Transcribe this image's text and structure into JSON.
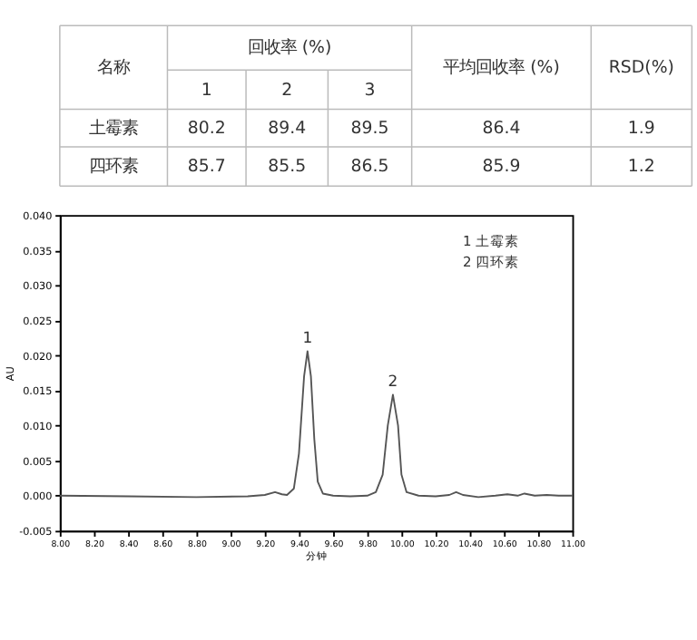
{
  "chart_data": [
    {
      "type": "other",
      "annotations": [
        "名称",
        "回收率 (%)",
        "1",
        "2",
        "3",
        "平均回收率 (%)",
        "RSD(%)",
        "土霉素",
        "80.2",
        "89.4",
        "89.5",
        "86.4",
        "1.9",
        "四环素",
        "85.7",
        "85.5",
        "86.5",
        "85.9",
        "1.2"
      ]
    },
    {
      "type": "line",
      "xlabel": "分钟",
      "ylabel": "AU",
      "grid": false,
      "marker": "none",
      "line_style": "solid",
      "series": [
        {
          "color": "#555555",
          "x": [
            8.0,
            8.4,
            8.8,
            9.1,
            9.2,
            9.26,
            9.3,
            9.33,
            9.37,
            9.4,
            9.43,
            9.45,
            9.47,
            9.49,
            9.51,
            9.54,
            9.6,
            9.7,
            9.8,
            9.85,
            9.89,
            9.92,
            9.95,
            9.98,
            10.0,
            10.03,
            10.1,
            10.2,
            10.28,
            10.32,
            10.36,
            10.45,
            10.55,
            10.62,
            10.68,
            10.72,
            10.78,
            10.85,
            10.92,
            11.0
          ],
          "values": [
            0.0,
            -0.0001,
            -0.0002,
            -0.0001,
            0.0001,
            0.0005,
            0.0002,
            0.0001,
            0.001,
            0.006,
            0.017,
            0.0206,
            0.017,
            0.008,
            0.002,
            0.0003,
            0.0,
            -0.0001,
            0.0,
            0.0005,
            0.003,
            0.01,
            0.0144,
            0.01,
            0.003,
            0.0005,
            0.0,
            -0.0001,
            0.0001,
            0.0005,
            0.0001,
            -0.0002,
            0.0,
            0.0002,
            0.0,
            0.0003,
            0.0,
            0.0001,
            0.0,
            0.0
          ]
        }
      ],
      "xlim": [
        8.0,
        11.0
      ],
      "xticks": [
        {
          "value": 8.0,
          "label": "8.00"
        },
        {
          "value": 8.2,
          "label": "8.20"
        },
        {
          "value": 8.4,
          "label": "8.40"
        },
        {
          "value": 8.6,
          "label": "8.60"
        },
        {
          "value": 8.8,
          "label": "8.80"
        },
        {
          "value": 9.0,
          "label": "9.00"
        },
        {
          "value": 9.2,
          "label": "9.20"
        },
        {
          "value": 9.4,
          "label": "9.40"
        },
        {
          "value": 9.6,
          "label": "9.60"
        },
        {
          "value": 9.8,
          "label": "9.80"
        },
        {
          "value": 10.0,
          "label": "10.00"
        },
        {
          "value": 10.2,
          "label": "10.20"
        },
        {
          "value": 10.4,
          "label": "10.40"
        },
        {
          "value": 10.6,
          "label": "10.60"
        },
        {
          "value": 10.8,
          "label": "10.80"
        },
        {
          "value": 11.0,
          "label": "11.00"
        }
      ],
      "ylim": [
        -0.005,
        0.04
      ],
      "yticks": [
        {
          "value": -0.005,
          "label": "-0.005"
        },
        {
          "value": 0.0,
          "label": "0.000"
        },
        {
          "value": 0.005,
          "label": "0.005"
        },
        {
          "value": 0.01,
          "label": "0.010"
        },
        {
          "value": 0.015,
          "label": "0.015"
        },
        {
          "value": 0.02,
          "label": "0.020"
        },
        {
          "value": 0.025,
          "label": "0.025"
        },
        {
          "value": 0.03,
          "label": "0.030"
        },
        {
          "value": 0.035,
          "label": "0.035"
        },
        {
          "value": 0.04,
          "label": "0.040"
        }
      ],
      "annotations": [
        {
          "text": "1",
          "x": 9.45,
          "y": 0.0206
        },
        {
          "text": "2",
          "x": 9.95,
          "y": 0.0144
        },
        "1 土霉素",
        "2 四环素"
      ]
    }
  ]
}
